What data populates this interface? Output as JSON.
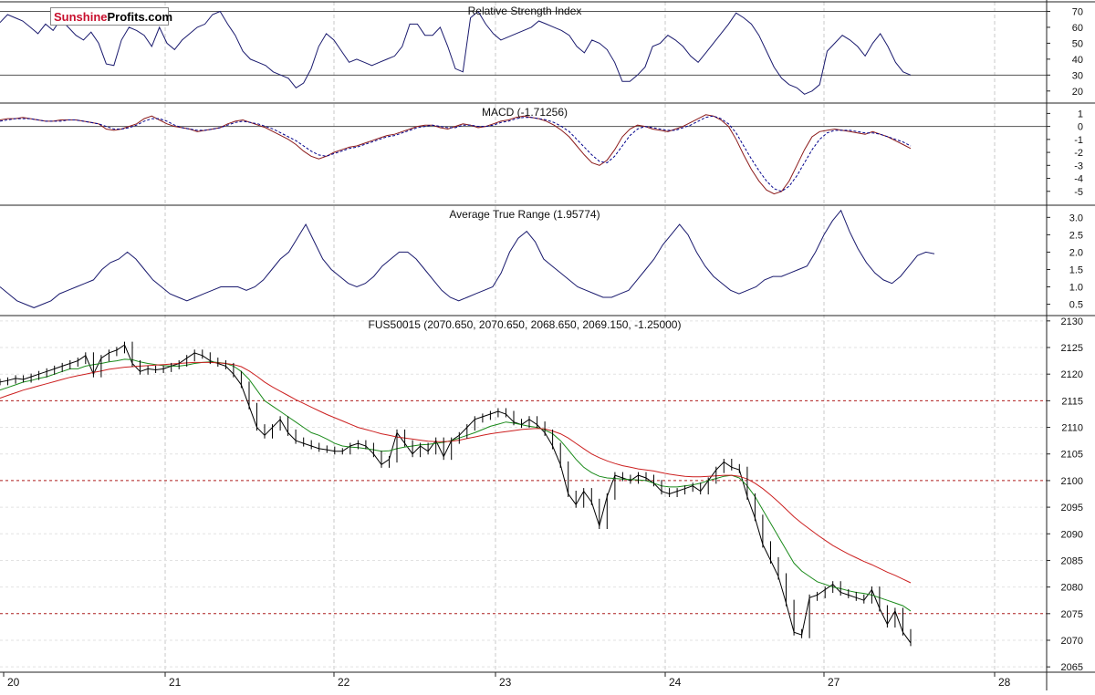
{
  "logo": {
    "part1": "Sunshine",
    "part2": "Profits.com"
  },
  "chart_data": [
    {
      "type": "line",
      "title": "Relative Strength Index",
      "y_ticks": [
        70,
        60,
        50,
        40,
        30,
        20
      ],
      "ylim": [
        13,
        76
      ],
      "ref_lines": [
        30,
        70
      ],
      "series": [
        {
          "values": [
            63,
            68,
            66,
            64,
            60,
            56,
            62,
            58,
            65,
            60,
            55,
            52,
            57,
            50,
            37,
            36,
            52,
            60,
            58,
            55,
            48,
            60,
            50,
            46,
            52,
            56,
            60,
            62,
            68,
            70,
            62,
            55,
            45,
            40,
            38,
            36,
            32,
            30,
            28,
            22,
            25,
            34,
            48,
            56,
            52,
            45,
            38,
            40,
            38,
            36,
            38,
            40,
            42,
            48,
            62,
            62,
            55,
            55,
            60,
            48,
            34,
            32,
            66,
            70,
            62,
            56,
            52,
            54,
            56,
            58,
            60,
            64,
            62,
            60,
            58,
            55,
            48,
            44,
            52,
            50,
            46,
            38,
            26,
            26,
            30,
            35,
            48,
            50,
            55,
            52,
            48,
            42,
            38,
            44,
            50,
            56,
            62,
            69,
            66,
            62,
            55,
            45,
            35,
            28,
            24,
            22,
            18,
            20,
            24,
            45,
            50,
            55,
            52,
            48,
            42,
            50,
            56,
            48,
            38,
            32,
            30
          ]
        }
      ]
    },
    {
      "type": "line",
      "title": "MACD (-1.71256)",
      "y_ticks": [
        1,
        0,
        -1,
        -2,
        -3,
        -4,
        -5
      ],
      "ylim": [
        -6,
        1.8
      ],
      "ref_lines": [
        0
      ],
      "series": [
        {
          "values": [
            0.5,
            0.6,
            0.6,
            0.7,
            0.6,
            0.5,
            0.4,
            0.4,
            0.5,
            0.5,
            0.5,
            0.4,
            0.3,
            0.2,
            -0.2,
            -0.3,
            -0.2,
            0.0,
            0.2,
            0.6,
            0.8,
            0.5,
            0.2,
            0.0,
            -0.1,
            -0.2,
            -0.4,
            -0.3,
            -0.2,
            -0.1,
            0.2,
            0.4,
            0.5,
            0.3,
            0.1,
            -0.1,
            -0.4,
            -0.7,
            -1.0,
            -1.4,
            -1.9,
            -2.3,
            -2.5,
            -2.3,
            -2.0,
            -1.8,
            -1.6,
            -1.5,
            -1.3,
            -1.1,
            -0.9,
            -0.7,
            -0.6,
            -0.4,
            -0.2,
            0.0,
            0.1,
            0.1,
            -0.1,
            -0.2,
            0.0,
            0.2,
            0.1,
            -0.1,
            0.0,
            0.2,
            0.4,
            0.5,
            0.7,
            0.8,
            0.7,
            0.6,
            0.4,
            0.1,
            -0.3,
            -0.8,
            -1.5,
            -2.2,
            -2.8,
            -3.0,
            -2.6,
            -1.8,
            -0.8,
            -0.2,
            0.1,
            0.0,
            -0.2,
            -0.3,
            -0.4,
            -0.2,
            0.0,
            0.3,
            0.6,
            0.9,
            0.8,
            0.5,
            0.0,
            -1.0,
            -2.2,
            -3.3,
            -4.2,
            -4.9,
            -5.2,
            -5.0,
            -4.2,
            -3.0,
            -1.8,
            -0.8,
            -0.4,
            -0.3,
            -0.2,
            -0.3,
            -0.4,
            -0.5,
            -0.6,
            -0.4,
            -0.6,
            -0.8,
            -1.1,
            -1.4,
            -1.7
          ],
          "color": "#8b1a1a"
        },
        {
          "values": [
            0.4,
            0.5,
            0.6,
            0.6,
            0.6,
            0.5,
            0.4,
            0.4,
            0.4,
            0.5,
            0.5,
            0.4,
            0.3,
            0.2,
            0.0,
            -0.2,
            -0.2,
            -0.1,
            0.1,
            0.4,
            0.6,
            0.6,
            0.4,
            0.1,
            -0.1,
            -0.2,
            -0.3,
            -0.3,
            -0.2,
            -0.1,
            0.1,
            0.3,
            0.4,
            0.3,
            0.2,
            0.0,
            -0.2,
            -0.5,
            -0.8,
            -1.1,
            -1.5,
            -1.9,
            -2.2,
            -2.3,
            -2.1,
            -1.9,
            -1.7,
            -1.6,
            -1.4,
            -1.2,
            -1.0,
            -0.8,
            -0.7,
            -0.5,
            -0.3,
            -0.1,
            0.0,
            0.1,
            0.0,
            -0.1,
            -0.1,
            0.1,
            0.1,
            0.0,
            0.0,
            0.1,
            0.3,
            0.4,
            0.6,
            0.7,
            0.7,
            0.6,
            0.5,
            0.3,
            0.0,
            -0.4,
            -1.0,
            -1.6,
            -2.2,
            -2.7,
            -2.8,
            -2.3,
            -1.5,
            -0.7,
            -0.2,
            0.0,
            -0.1,
            -0.2,
            -0.3,
            -0.3,
            -0.1,
            0.1,
            0.4,
            0.7,
            0.8,
            0.6,
            0.2,
            -0.5,
            -1.5,
            -2.5,
            -3.4,
            -4.2,
            -4.8,
            -5.0,
            -4.6,
            -3.8,
            -2.8,
            -1.8,
            -1.0,
            -0.5,
            -0.3,
            -0.3,
            -0.3,
            -0.4,
            -0.5,
            -0.5,
            -0.6,
            -0.8,
            -1.0,
            -1.2,
            -1.5
          ],
          "color": "#00008b"
        }
      ]
    },
    {
      "type": "line",
      "title": "Average True Range (1.95774)",
      "y_ticks": [
        3.0,
        2.5,
        2.0,
        1.5,
        1.0,
        0.5
      ],
      "ylim": [
        0.2,
        3.35
      ],
      "series": [
        {
          "values": [
            1.0,
            0.8,
            0.6,
            0.5,
            0.4,
            0.5,
            0.6,
            0.8,
            0.9,
            1.0,
            1.1,
            1.2,
            1.5,
            1.7,
            1.8,
            2.0,
            1.8,
            1.5,
            1.2,
            1.0,
            0.8,
            0.7,
            0.6,
            0.7,
            0.8,
            0.9,
            1.0,
            1.0,
            1.0,
            0.9,
            1.0,
            1.2,
            1.5,
            1.8,
            2.0,
            2.4,
            2.8,
            2.3,
            1.8,
            1.5,
            1.3,
            1.1,
            1.0,
            1.1,
            1.3,
            1.6,
            1.8,
            2.0,
            2.0,
            1.8,
            1.5,
            1.2,
            0.9,
            0.7,
            0.6,
            0.7,
            0.8,
            0.9,
            1.0,
            1.4,
            2.0,
            2.4,
            2.6,
            2.3,
            1.8,
            1.6,
            1.4,
            1.2,
            1.0,
            0.9,
            0.8,
            0.7,
            0.7,
            0.8,
            0.9,
            1.2,
            1.5,
            1.8,
            2.2,
            2.5,
            2.8,
            2.5,
            2.0,
            1.6,
            1.3,
            1.1,
            0.9,
            0.8,
            0.9,
            1.0,
            1.2,
            1.3,
            1.3,
            1.4,
            1.5,
            1.6,
            2.0,
            2.5,
            2.9,
            3.2,
            2.6,
            2.1,
            1.7,
            1.4,
            1.2,
            1.1,
            1.3,
            1.6,
            1.9,
            2.0,
            1.95
          ]
        }
      ]
    },
    {
      "type": "line",
      "title": "FUS50015 (2070.650, 2070.650, 2068.650, 2069.150, -1.25000)",
      "x_tick_labels": [
        "20",
        "21",
        "22",
        "23",
        "24",
        "27",
        "28"
      ],
      "y_ticks": [
        2130,
        2125,
        2120,
        2115,
        2110,
        2105,
        2100,
        2095,
        2090,
        2085,
        2080,
        2075,
        2070,
        2065
      ],
      "ylim": [
        2064,
        2131
      ],
      "ref_lines": [
        2115,
        2100,
        2075
      ],
      "series": [
        {
          "values": [
            2118.5,
            2118.8,
            2119.2,
            2119.0,
            2119.5,
            2120.0,
            2120.5,
            2121.0,
            2121.5,
            2122.0,
            2122.5,
            2123.5,
            2120.0,
            2123.0,
            2124.0,
            2124.5,
            2125.5,
            2122.0,
            2120.5,
            2121.0,
            2120.8,
            2121.0,
            2121.5,
            2122.0,
            2123.0,
            2124.0,
            2123.5,
            2122.5,
            2122.0,
            2121.5,
            2120.0,
            2118.0,
            2114.0,
            2110.0,
            2108.5,
            2110.0,
            2111.5,
            2109.0,
            2107.5,
            2107.0,
            2106.5,
            2106.0,
            2105.8,
            2105.5,
            2105.5,
            2106.5,
            2107.0,
            2106.5,
            2105.0,
            2103.0,
            2104.0,
            2109.0,
            2107.0,
            2105.0,
            2106.5,
            2105.5,
            2107.5,
            2104.5,
            2107.5,
            2108.5,
            2110.0,
            2111.5,
            2112.0,
            2112.5,
            2113.0,
            2112.5,
            2111.0,
            2110.5,
            2111.5,
            2110.5,
            2109.0,
            2106.5,
            2103.0,
            2097.5,
            2095.5,
            2098.0,
            2096.0,
            2091.5,
            2097.0,
            2101.0,
            2100.5,
            2100.0,
            2101.0,
            2100.5,
            2099.5,
            2098.0,
            2097.5,
            2098.0,
            2098.5,
            2099.0,
            2098.0,
            2100.0,
            2102.0,
            2103.5,
            2102.5,
            2102.0,
            2097.0,
            2093.0,
            2088.0,
            2085.0,
            2082.0,
            2077.0,
            2071.5,
            2071.0,
            2078.0,
            2078.5,
            2079.5,
            2080.5,
            2079.0,
            2078.5,
            2078.0,
            2077.5,
            2079.5,
            2076.0,
            2073.0,
            2075.5,
            2071.5,
            2069.5
          ],
          "color": "#000000"
        },
        {
          "values": [
            2117.0,
            2117.5,
            2118.0,
            2118.5,
            2118.8,
            2119.2,
            2119.5,
            2120.0,
            2120.5,
            2121.0,
            2121.0,
            2121.5,
            2121.8,
            2122.0,
            2122.3,
            2122.5,
            2122.8,
            2122.7,
            2122.3,
            2122.0,
            2121.8,
            2121.6,
            2121.5,
            2121.5,
            2121.7,
            2122.0,
            2122.2,
            2122.3,
            2122.2,
            2122.0,
            2121.5,
            2120.5,
            2119.0,
            2117.0,
            2115.0,
            2114.0,
            2113.0,
            2112.0,
            2111.0,
            2110.0,
            2109.0,
            2108.5,
            2107.8,
            2107.0,
            2106.5,
            2106.3,
            2106.2,
            2106.0,
            2105.8,
            2105.5,
            2105.6,
            2106.0,
            2106.3,
            2106.5,
            2106.7,
            2106.8,
            2107.0,
            2107.2,
            2107.5,
            2108.0,
            2108.5,
            2109.0,
            2109.6,
            2110.2,
            2110.6,
            2111.0,
            2110.8,
            2110.5,
            2110.2,
            2110.0,
            2109.5,
            2108.8,
            2107.5,
            2105.8,
            2104.0,
            2102.5,
            2101.5,
            2100.8,
            2100.5,
            2100.4,
            2100.3,
            2100.2,
            2100.1,
            2100.0,
            2099.5,
            2099.0,
            2098.8,
            2098.8,
            2099.0,
            2099.2,
            2099.5,
            2100.0,
            2100.4,
            2100.8,
            2101.0,
            2100.5,
            2099.0,
            2097.0,
            2094.5,
            2092.0,
            2089.5,
            2087.0,
            2084.5,
            2083.0,
            2082.0,
            2081.0,
            2080.5,
            2080.0,
            2079.7,
            2079.3,
            2079.0,
            2078.8,
            2078.5,
            2078.0,
            2077.5,
            2077.0,
            2076.5,
            2075.5
          ],
          "color": "#1a8a1a"
        },
        {
          "values": [
            2115.5,
            2116.0,
            2116.5,
            2117.0,
            2117.4,
            2117.8,
            2118.2,
            2118.6,
            2119.0,
            2119.4,
            2119.7,
            2120.0,
            2120.3,
            2120.6,
            2120.9,
            2121.1,
            2121.3,
            2121.4,
            2121.5,
            2121.6,
            2121.7,
            2121.8,
            2121.9,
            2122.0,
            2122.1,
            2122.2,
            2122.2,
            2122.2,
            2122.1,
            2122.0,
            2121.8,
            2121.4,
            2120.6,
            2119.6,
            2118.5,
            2117.6,
            2116.8,
            2116.0,
            2115.2,
            2114.5,
            2113.8,
            2113.1,
            2112.4,
            2111.8,
            2111.2,
            2110.6,
            2110.0,
            2109.6,
            2109.2,
            2108.8,
            2108.5,
            2108.2,
            2108.0,
            2107.8,
            2107.6,
            2107.4,
            2107.3,
            2107.3,
            2107.4,
            2107.6,
            2107.9,
            2108.2,
            2108.5,
            2108.8,
            2109.0,
            2109.2,
            2109.4,
            2109.6,
            2109.7,
            2109.8,
            2109.7,
            2109.3,
            2108.8,
            2108.0,
            2107.0,
            2106.0,
            2105.0,
            2104.3,
            2103.7,
            2103.2,
            2102.8,
            2102.5,
            2102.2,
            2102.0,
            2101.8,
            2101.5,
            2101.2,
            2101.0,
            2100.8,
            2100.7,
            2100.7,
            2100.8,
            2100.9,
            2101.0,
            2101.0,
            2100.8,
            2100.3,
            2099.5,
            2098.5,
            2097.3,
            2096.0,
            2094.6,
            2093.2,
            2092.0,
            2090.9,
            2089.8,
            2088.8,
            2087.8,
            2087.0,
            2086.2,
            2085.5,
            2084.8,
            2084.2,
            2083.5,
            2082.8,
            2082.2,
            2081.5,
            2080.8
          ],
          "color": "#cc2020"
        }
      ]
    }
  ]
}
